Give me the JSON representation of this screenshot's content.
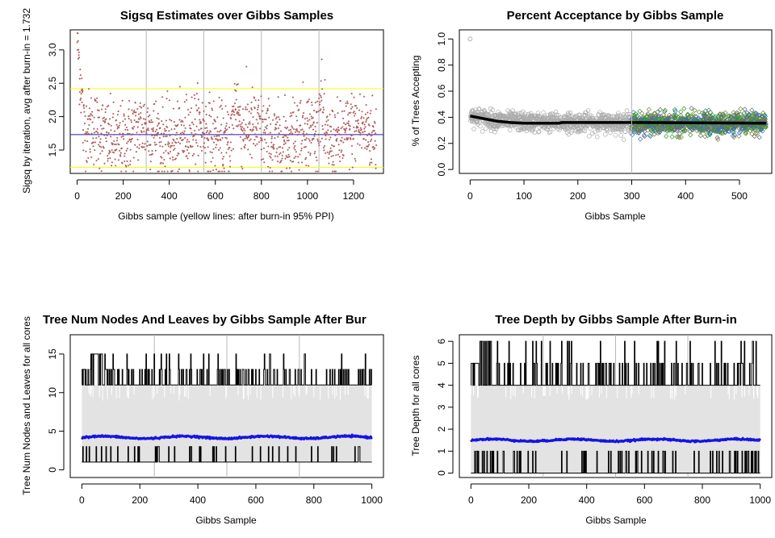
{
  "chart_data": [
    {
      "id": "p1",
      "type": "scatter",
      "title": "Sigsq Estimates over Gibbs Samples",
      "xlabel": "Gibbs sample (yellow lines: after burn-in 95% PPI)",
      "ylabel": "Sigsq by iteration, avg after burn-in = 1.732",
      "xlim": [
        -30,
        1330
      ],
      "ylim": [
        1.15,
        3.3
      ],
      "xticks": [
        0,
        200,
        400,
        600,
        800,
        1000,
        1200
      ],
      "yticks": [
        1.5,
        2.0,
        2.5,
        3.0
      ],
      "ytick_labels": [
        "1.5",
        "2.0",
        "2.5",
        "3.0"
      ],
      "vlines": [
        300,
        550,
        800,
        1050
      ],
      "hlines": [
        {
          "y": 1.732,
          "color": "#1c1cb0",
          "label": "avg after burn-in"
        },
        {
          "y": 2.42,
          "color": "#ffff00",
          "label": "95% PPI upper"
        },
        {
          "y": 1.24,
          "color": "#ffff00",
          "label": "95% PPI lower"
        }
      ],
      "points_color": "#e04040",
      "n_points": 1300,
      "series_summary": {
        "burn_in_start": 3.2,
        "burn_in_min_by": 1.7,
        "mean": 1.73,
        "spikes": [
          {
            "x": 20,
            "y": 3.2
          },
          {
            "x": 690,
            "y": 2.75
          },
          {
            "x": 1060,
            "y": 2.85
          },
          {
            "x": 140,
            "y": 2.93
          }
        ]
      },
      "grid": false
    },
    {
      "id": "p2",
      "type": "scatter",
      "title": "Percent Acceptance by Gibbs Sample",
      "xlabel": "Gibbs Sample",
      "ylabel": "% of Trees Accepting",
      "xlim": [
        -20,
        560
      ],
      "ylim": [
        -0.03,
        1.07
      ],
      "xticks": [
        0,
        100,
        200,
        300,
        400,
        500
      ],
      "yticks": [
        0.0,
        0.2,
        0.4,
        0.6,
        0.8,
        1.0
      ],
      "ytick_labels": [
        "0.0",
        "0.2",
        "0.4",
        "0.6",
        "0.8",
        "1.0"
      ],
      "vlines": [
        300
      ],
      "burn_in_color": "#aaaaaa",
      "core_colors": [
        "#3a6ad0",
        "#7a8a3a",
        "#2aa02a",
        "#666666"
      ],
      "line_color": "#000000",
      "line_points": [
        [
          0,
          0.41
        ],
        [
          25,
          0.39
        ],
        [
          50,
          0.37
        ],
        [
          75,
          0.36
        ],
        [
          100,
          0.355
        ],
        [
          165,
          0.355
        ],
        [
          170,
          0.36
        ],
        [
          300,
          0.36
        ],
        [
          550,
          0.355
        ]
      ],
      "first_point": [
        0,
        1.0
      ],
      "grid": false
    },
    {
      "id": "p3",
      "type": "line",
      "title": "Tree Num Nodes And Leaves by Gibbs Sample After Bur",
      "xlabel": "Gibbs Sample",
      "ylabel": "Tree Num Nodes and Leaves for all cores",
      "xlim": [
        -40,
        1040
      ],
      "ylim": [
        -1,
        17.5
      ],
      "xticks": [
        0,
        200,
        400,
        600,
        800,
        1000
      ],
      "yticks": [
        0,
        5,
        10,
        15
      ],
      "ytick_labels": [
        "0",
        "5",
        "10",
        "15"
      ],
      "vlines": [
        250,
        500,
        750
      ],
      "band": {
        "low": 1,
        "high": 11,
        "color": "#e3e3e3"
      },
      "max_series": {
        "base": 11,
        "values": [
          13,
          15
        ],
        "color": "#000000"
      },
      "min_series": {
        "base": 1,
        "values": [
          3
        ],
        "color": "#000000"
      },
      "avg_series": {
        "mean": 4.2,
        "color": "#1515e0"
      },
      "grid": false
    },
    {
      "id": "p4",
      "type": "line",
      "title": "Tree Depth by Gibbs Sample After Burn-in",
      "xlabel": "Gibbs Sample",
      "ylabel": "Tree Depth for all cores",
      "xlim": [
        -40,
        1040
      ],
      "ylim": [
        -0.2,
        6.3
      ],
      "xticks": [
        0,
        200,
        400,
        600,
        800,
        1000
      ],
      "yticks": [
        0,
        1,
        2,
        3,
        4,
        5,
        6
      ],
      "ytick_labels": [
        "0",
        "1",
        "2",
        "3",
        "4",
        "5",
        "6"
      ],
      "vlines": [
        250,
        500,
        750
      ],
      "band": {
        "low": 0,
        "high": 4,
        "color": "#e3e3e3"
      },
      "max_series": {
        "base": 4,
        "values": [
          5,
          6
        ],
        "color": "#000000"
      },
      "min_series": {
        "base": 0,
        "values": [
          1
        ],
        "color": "#000000"
      },
      "avg_series": {
        "mean": 1.5,
        "color": "#1515e0"
      },
      "grid": false
    }
  ]
}
